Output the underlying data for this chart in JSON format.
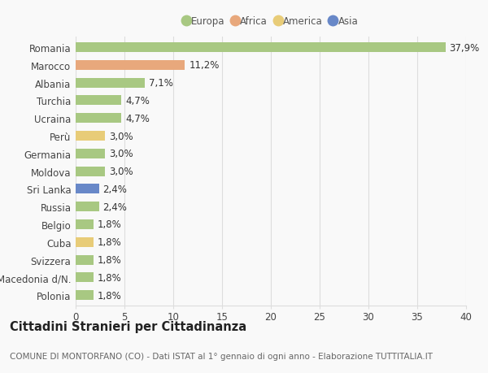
{
  "countries": [
    "Romania",
    "Marocco",
    "Albania",
    "Turchia",
    "Ucraina",
    "Perù",
    "Germania",
    "Moldova",
    "Sri Lanka",
    "Russia",
    "Belgio",
    "Cuba",
    "Svizzera",
    "Macedonia d/N.",
    "Polonia"
  ],
  "values": [
    37.9,
    11.2,
    7.1,
    4.7,
    4.7,
    3.0,
    3.0,
    3.0,
    2.4,
    2.4,
    1.8,
    1.8,
    1.8,
    1.8,
    1.8
  ],
  "labels": [
    "37,9%",
    "11,2%",
    "7,1%",
    "4,7%",
    "4,7%",
    "3,0%",
    "3,0%",
    "3,0%",
    "2,4%",
    "2,4%",
    "1,8%",
    "1,8%",
    "1,8%",
    "1,8%",
    "1,8%"
  ],
  "continents": [
    "Europa",
    "Africa",
    "Europa",
    "Europa",
    "Europa",
    "America",
    "Europa",
    "Europa",
    "Asia",
    "Europa",
    "Europa",
    "America",
    "Europa",
    "Europa",
    "Europa"
  ],
  "colors": {
    "Europa": "#a8c882",
    "Africa": "#e8a87c",
    "America": "#e8cc78",
    "Asia": "#6888c8"
  },
  "legend_order": [
    "Europa",
    "Africa",
    "America",
    "Asia"
  ],
  "title": "Cittadini Stranieri per Cittadinanza",
  "subtitle": "COMUNE DI MONTORFANO (CO) - Dati ISTAT al 1° gennaio di ogni anno - Elaborazione TUTTITALIA.IT",
  "xlim": [
    0,
    40
  ],
  "xticks": [
    0,
    5,
    10,
    15,
    20,
    25,
    30,
    35,
    40
  ],
  "background_color": "#f9f9f9",
  "grid_color": "#dddddd",
  "bar_height": 0.55,
  "label_fontsize": 8.5,
  "tick_fontsize": 8.5,
  "title_fontsize": 10.5,
  "subtitle_fontsize": 7.5
}
